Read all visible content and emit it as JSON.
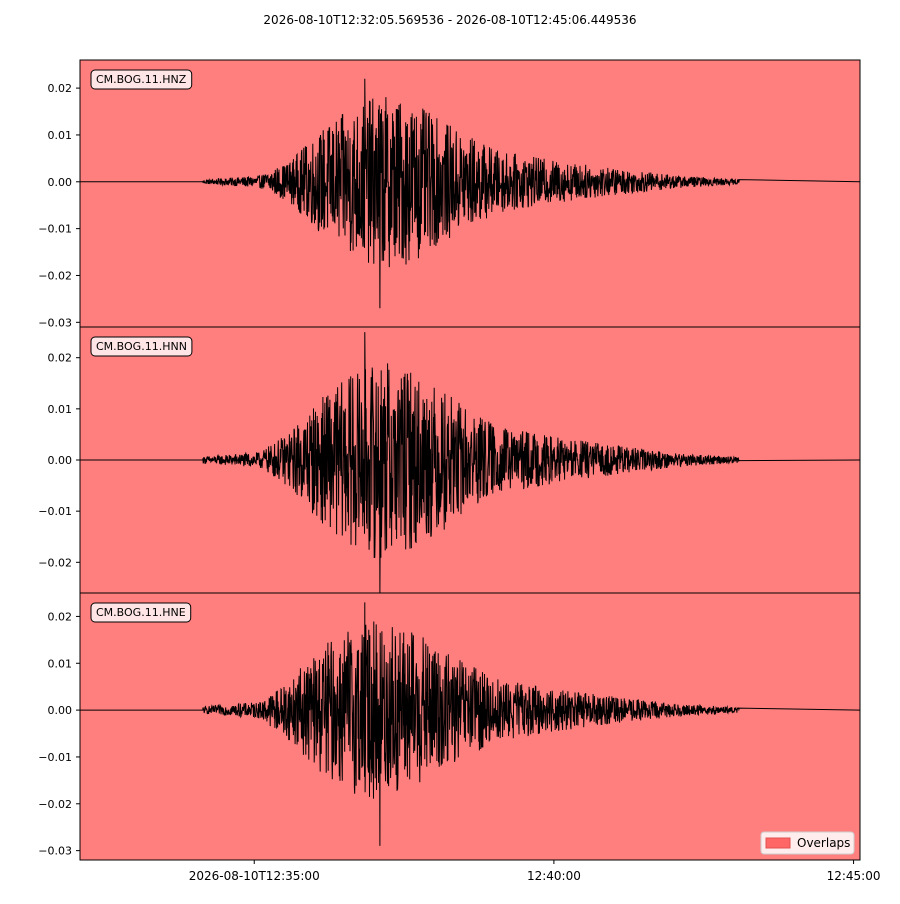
{
  "title": "2026-08-10T12:32:05.569536  -  2026-08-10T12:45:06.449536",
  "colors": {
    "background": "#ff7f7f",
    "trace": "#000000",
    "legend_patch": "#ff6666"
  },
  "legend": {
    "label": "Overlaps",
    "placement": "lower-right"
  },
  "x_axis": {
    "start": "2026-08-10T12:32:05.569536",
    "end": "2026-08-10T12:45:06.449536",
    "tick_labels": [
      "2026-08-10T12:35:00",
      "12:40:00",
      "12:45:00"
    ],
    "tick_seconds_from_start": [
      174.43,
      474.43,
      774.43
    ],
    "range_seconds": [
      0,
      780.88
    ]
  },
  "chart_data": [
    {
      "type": "line",
      "name": "CM.BOG.11.HNZ",
      "ylim": [
        -0.031,
        0.026
      ],
      "yticks": [
        0.02,
        0.01,
        0.0,
        -0.01,
        -0.02,
        -0.03
      ],
      "ytick_labels": [
        "0.02",
        "0.01",
        "0.00",
        "−0.01",
        "−0.02",
        "−0.03"
      ],
      "data_span_seconds": [
        123,
        660
      ],
      "envelope_seconds": [
        123,
        180,
        210,
        240,
        270,
        300,
        330,
        360,
        390,
        420,
        480,
        540,
        600,
        660
      ],
      "envelope_amplitude": [
        0.0004,
        0.0012,
        0.004,
        0.01,
        0.014,
        0.017,
        0.016,
        0.012,
        0.009,
        0.006,
        0.004,
        0.0025,
        0.0012,
        0.0005
      ],
      "peak_max": 0.022,
      "peak_min": -0.027
    },
    {
      "type": "line",
      "name": "CM.BOG.11.HNN",
      "ylim": [
        -0.026,
        0.026
      ],
      "yticks": [
        0.02,
        0.01,
        0.0,
        -0.01,
        -0.02
      ],
      "ytick_labels": [
        "0.02",
        "0.01",
        "0.00",
        "−0.01",
        "−0.02"
      ],
      "data_span_seconds": [
        123,
        660
      ],
      "envelope_seconds": [
        123,
        180,
        210,
        240,
        270,
        300,
        330,
        360,
        390,
        420,
        480,
        540,
        600,
        660
      ],
      "envelope_amplitude": [
        0.0006,
        0.0014,
        0.005,
        0.011,
        0.015,
        0.018,
        0.016,
        0.013,
        0.009,
        0.006,
        0.004,
        0.0025,
        0.0012,
        0.0005
      ],
      "peak_max": 0.025,
      "peak_min": -0.026
    },
    {
      "type": "line",
      "name": "CM.BOG.11.HNE",
      "ylim": [
        -0.032,
        0.025
      ],
      "yticks": [
        0.02,
        0.01,
        0.0,
        -0.01,
        -0.02,
        -0.03
      ],
      "ytick_labels": [
        "0.02",
        "0.01",
        "0.00",
        "−0.01",
        "−0.02",
        "−0.03"
      ],
      "data_span_seconds": [
        123,
        660
      ],
      "envelope_seconds": [
        123,
        180,
        210,
        240,
        270,
        300,
        330,
        360,
        390,
        420,
        480,
        540,
        600,
        660
      ],
      "envelope_amplitude": [
        0.0007,
        0.0016,
        0.006,
        0.012,
        0.016,
        0.018,
        0.016,
        0.012,
        0.009,
        0.006,
        0.004,
        0.0025,
        0.0012,
        0.0005
      ],
      "peak_max": 0.023,
      "peak_min": -0.029
    }
  ]
}
